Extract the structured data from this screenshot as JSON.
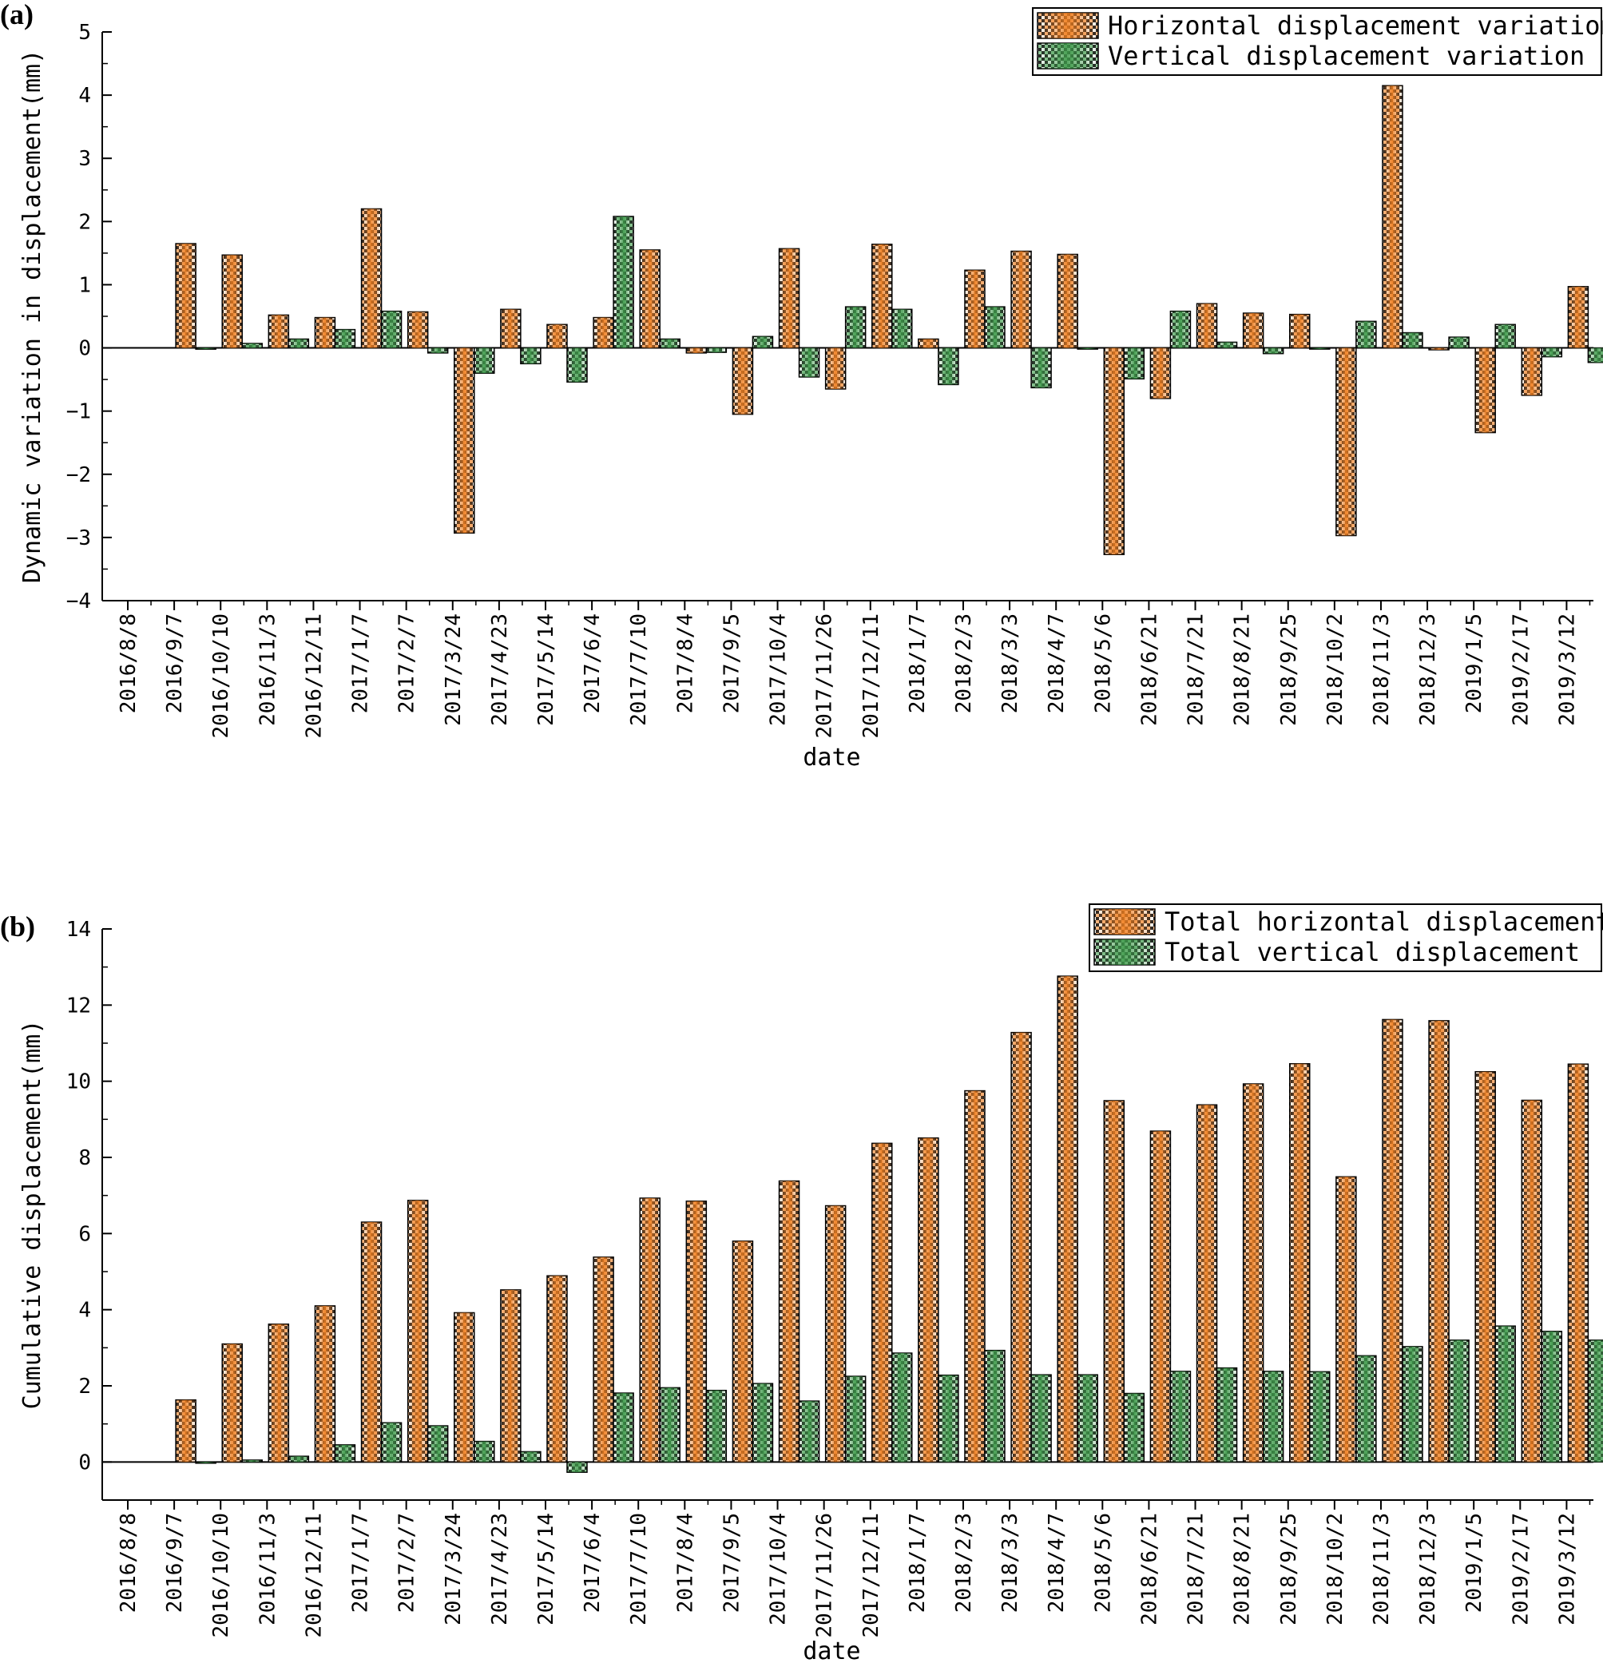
{
  "colors": {
    "horizontal": "#f07f20",
    "vertical": "#3e9a4a",
    "check": "#222222"
  },
  "chart_data": [
    {
      "type": "bar",
      "panel_label": "(a)",
      "xlabel": "date",
      "ylabel": "Dynamic variation in displacement(mm)",
      "ylim": [
        -4,
        5
      ],
      "yticks": [
        -4,
        -3,
        -2,
        -1,
        0,
        1,
        2,
        3,
        4,
        5
      ],
      "ytick_labels": [
        "−4",
        "−3",
        "−2",
        "−1",
        "0",
        "1",
        "2",
        "3",
        "4",
        "5"
      ],
      "legend_position": "top-right",
      "categories": [
        "2016/8/8",
        "2016/9/7",
        "2016/10/10",
        "2016/11/3",
        "2016/12/11",
        "2017/1/7",
        "2017/2/7",
        "2017/3/24",
        "2017/4/23",
        "2017/5/14",
        "2017/6/4",
        "2017/7/10",
        "2017/8/4",
        "2017/9/5",
        "2017/10/4",
        "2017/11/26",
        "2017/12/11",
        "2018/1/7",
        "2018/2/3",
        "2018/3/3",
        "2018/4/7",
        "2018/5/6",
        "2018/6/21",
        "2018/7/21",
        "2018/8/21",
        "2018/9/25",
        "2018/10/2",
        "2018/11/3",
        "2018/12/3",
        "2019/1/5",
        "2019/2/17",
        "2019/3/12"
      ],
      "series": [
        {
          "name": "Horizontal displacement variation",
          "color_key": "horizontal",
          "values": [
            0,
            1.65,
            1.47,
            0.52,
            0.48,
            2.2,
            0.57,
            -2.93,
            0.61,
            0.37,
            0.48,
            1.55,
            -0.08,
            -1.05,
            1.57,
            -0.65,
            1.64,
            0.14,
            1.23,
            1.53,
            1.48,
            -3.27,
            -0.8,
            0.7,
            0.55,
            0.53,
            -2.97,
            4.15,
            -0.03,
            -1.34,
            -0.75,
            0.97
          ]
        },
        {
          "name": "Vertical displacement variation",
          "color_key": "vertical",
          "values": [
            0,
            -0.02,
            0.07,
            0.14,
            0.29,
            0.58,
            -0.08,
            -0.4,
            -0.25,
            -0.54,
            2.08,
            0.14,
            -0.07,
            0.18,
            -0.46,
            0.65,
            0.61,
            -0.58,
            0.65,
            -0.63,
            0,
            -0.49,
            0.58,
            0.09,
            -0.09,
            -0.01,
            0.42,
            0.24,
            0.17,
            0.37,
            -0.14,
            -0.23
          ]
        }
      ]
    },
    {
      "type": "bar",
      "panel_label": "(b)",
      "xlabel": "date",
      "ylabel": "Cumulative displacement(mm)",
      "ylim": [
        -1,
        14
      ],
      "yticks": [
        0,
        2,
        4,
        6,
        8,
        10,
        12,
        14
      ],
      "ytick_labels": [
        "0",
        "2",
        "4",
        "6",
        "8",
        "10",
        "12",
        "14"
      ],
      "legend_position": "top-right",
      "categories": [
        "2016/8/8",
        "2016/9/7",
        "2016/10/10",
        "2016/11/3",
        "2016/12/11",
        "2017/1/7",
        "2017/2/7",
        "2017/3/24",
        "2017/4/23",
        "2017/5/14",
        "2017/6/4",
        "2017/7/10",
        "2017/8/4",
        "2017/9/5",
        "2017/10/4",
        "2017/11/26",
        "2017/12/11",
        "2018/1/7",
        "2018/2/3",
        "2018/3/3",
        "2018/4/7",
        "2018/5/6",
        "2018/6/21",
        "2018/7/21",
        "2018/8/21",
        "2018/9/25",
        "2018/10/2",
        "2018/11/3",
        "2018/12/3",
        "2019/1/5",
        "2019/2/17",
        "2019/3/12"
      ],
      "series": [
        {
          "name": "Total horizontal displacement",
          "color_key": "horizontal",
          "values": [
            0,
            1.63,
            3.1,
            3.62,
            4.1,
            6.3,
            6.87,
            3.92,
            4.52,
            4.89,
            5.38,
            6.93,
            6.85,
            5.8,
            7.38,
            6.73,
            8.37,
            8.51,
            9.75,
            11.28,
            12.76,
            9.49,
            8.69,
            9.38,
            9.93,
            10.46,
            7.49,
            11.62,
            11.59,
            10.25,
            9.5,
            10.45
          ]
        },
        {
          "name": "Total vertical displacement",
          "color_key": "vertical",
          "values": [
            0,
            -0.02,
            0.05,
            0.15,
            0.45,
            1.03,
            0.95,
            0.54,
            0.27,
            -0.27,
            1.81,
            1.95,
            1.88,
            2.06,
            1.6,
            2.25,
            2.86,
            2.28,
            2.93,
            2.29,
            2.29,
            1.8,
            2.38,
            2.47,
            2.38,
            2.37,
            2.79,
            3.03,
            3.2,
            3.57,
            3.43,
            3.2
          ]
        }
      ]
    }
  ]
}
